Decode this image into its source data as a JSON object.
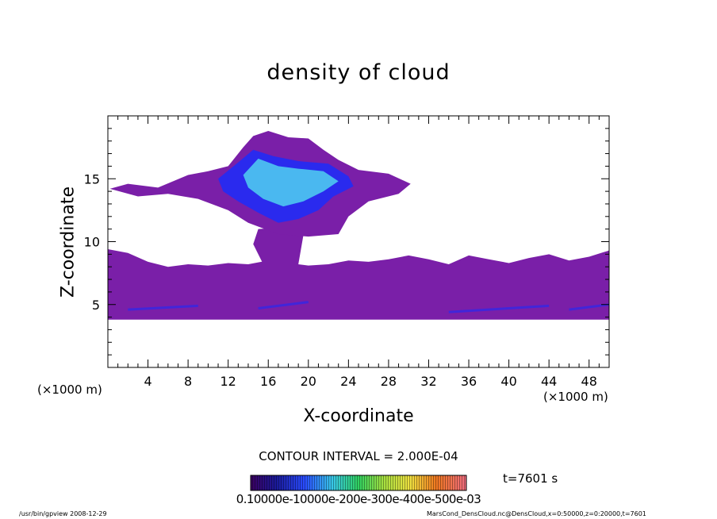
{
  "chart_data": {
    "type": "heatmap",
    "title": "density of cloud",
    "xlabel": "X-coordinate",
    "ylabel": "Z-coordinate",
    "x_unit_left": "(×1000 m)",
    "x_unit_right": "(×1000 m)",
    "xlim": [
      0,
      50
    ],
    "ylim": [
      0,
      20
    ],
    "x_ticks": [
      "4",
      "8",
      "12",
      "16",
      "20",
      "24",
      "28",
      "32",
      "36",
      "40",
      "44",
      "48"
    ],
    "y_ticks": [
      "5",
      "10",
      "15"
    ],
    "x_tick_values": [
      4,
      8,
      12,
      16,
      20,
      24,
      28,
      32,
      36,
      40,
      44,
      48
    ],
    "y_tick_values": [
      5,
      10,
      15
    ],
    "contour_interval_text": "CONTOUR INTERVAL = 2.000E-04",
    "time_text": "t=7601 s",
    "colorbar_labels_text": "0.10000e-10000e-200e-300e-400e-500e-03",
    "colorbar_range": [
      0,
      0.0015
    ],
    "cloud_regions": [
      {
        "level": "low",
        "x": [
          0,
          50
        ],
        "z": [
          3.8,
          9.3
        ]
      },
      {
        "level": "low",
        "x": [
          8,
          31
        ],
        "z": [
          10.2,
          18.8
        ]
      },
      {
        "level": "high",
        "x": [
          10,
          25
        ],
        "z": [
          11.5,
          17.5
        ]
      }
    ],
    "colors": {
      "low": "#7a1fa8",
      "mid": "#2a2aee",
      "high": "#4ab8f0"
    }
  },
  "footer": {
    "left": "/usr/bin/gpview   2008-12-29",
    "right": "MarsCond_DensCloud.nc@DensCloud,x=0:50000,z=0:20000,t=7601"
  }
}
